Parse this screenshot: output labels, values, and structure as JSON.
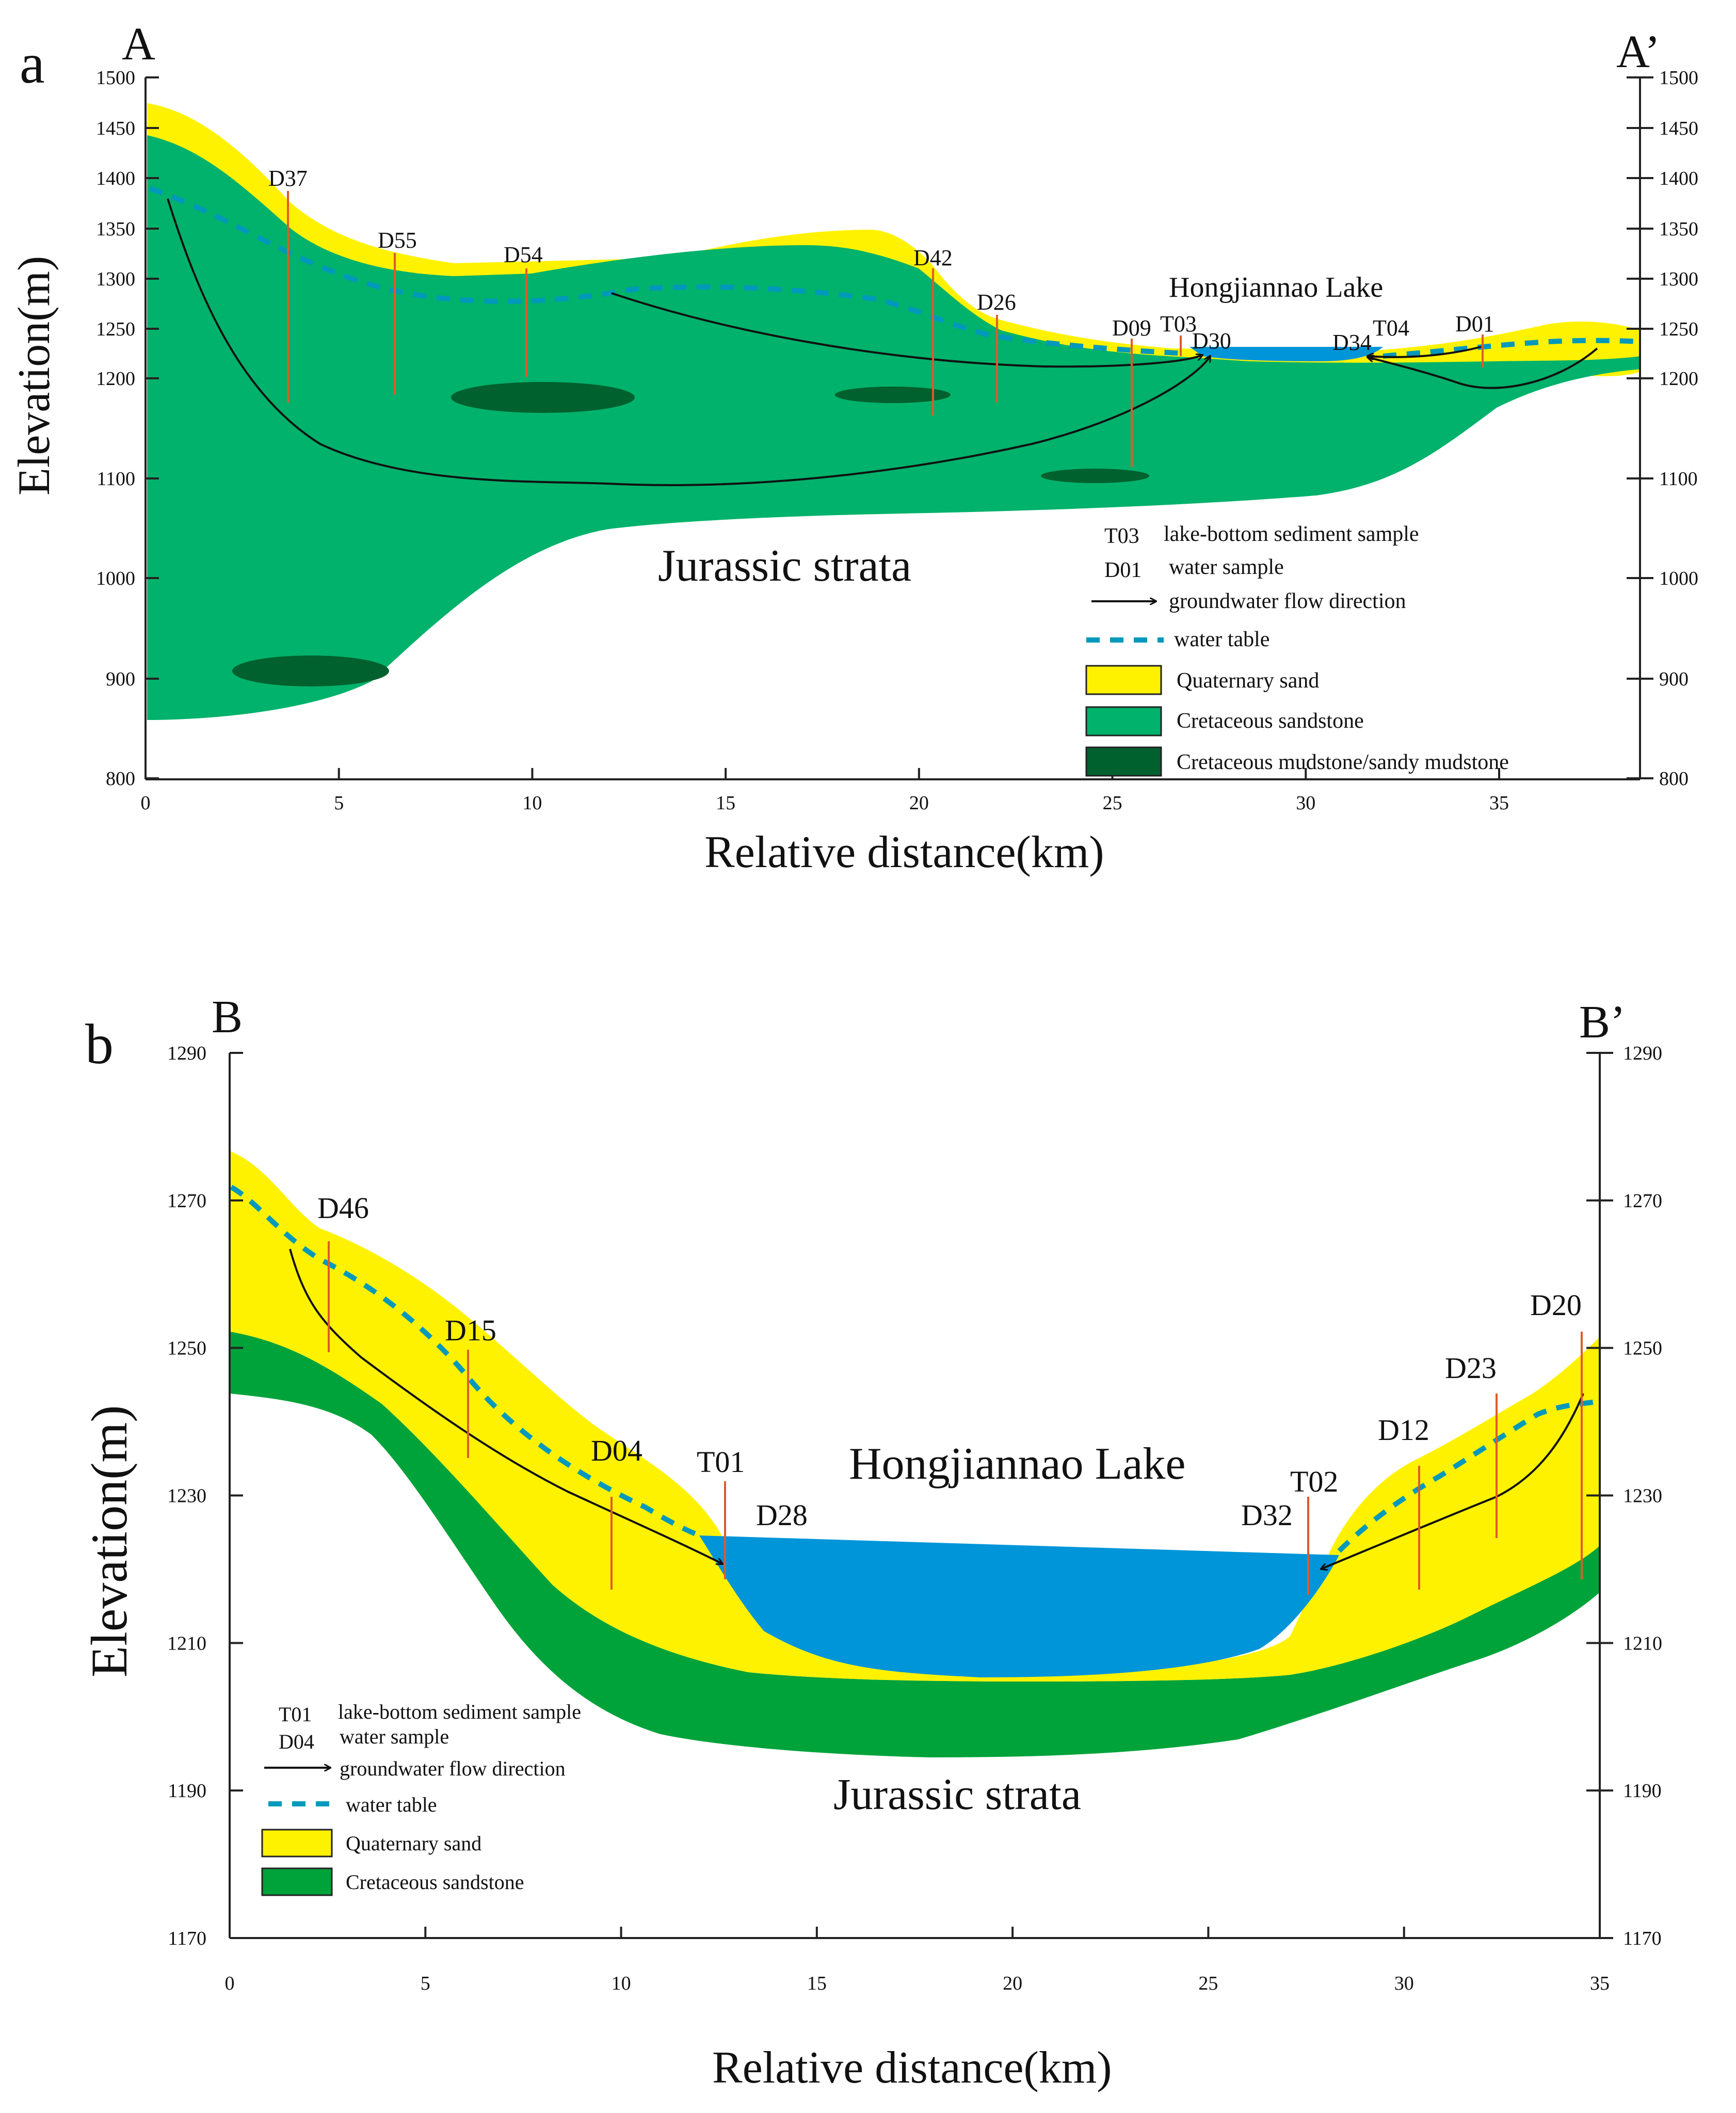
{
  "colors": {
    "quaternary_sand": "#fff200",
    "cretaceous_sandstone": "#00b26b",
    "cretaceous_sandstone_b": "#00a33a",
    "mudstone": "#00612e",
    "lake": "#0095d9",
    "water_table": "#0099bb",
    "well_line": "#e05a2a",
    "axis": "#222222"
  },
  "panel_a": {
    "letter": "a",
    "left_label": "A",
    "right_label": "A’",
    "y_axis_label": "Elevation(m)",
    "x_axis_label": "Relative distance(km)",
    "y_ticks": [
      "1500",
      "1450",
      "1400",
      "1350",
      "1300",
      "1250",
      "1200",
      "1100",
      "1000",
      "900",
      "800"
    ],
    "x_ticks": [
      "0",
      "5",
      "10",
      "15",
      "20",
      "25",
      "30",
      "35"
    ],
    "lake_label": "Hongjiannao Lake",
    "strata_label": "Jurassic strata",
    "wells": [
      "D37",
      "D55",
      "D54",
      "D42",
      "D26",
      "D09",
      "T03",
      "D30",
      "D34",
      "T04",
      "D01"
    ],
    "legend": {
      "sediment_code": "T03",
      "sediment_label": "lake-bottom sediment sample",
      "water_code": "D01",
      "water_label": "water sample",
      "flow_label": "groundwater flow direction",
      "watertable_label": "water table",
      "sand_label": "Quaternary sand",
      "sandstone_label": "Cretaceous sandstone",
      "mudstone_label": "Cretaceous mudstone/sandy mudstone"
    }
  },
  "panel_b": {
    "letter": "b",
    "left_label": "B",
    "right_label": "B’",
    "y_axis_label": "Elevation(m)",
    "x_axis_label": "Relative distance(km)",
    "y_ticks": [
      "1290",
      "1270",
      "1250",
      "1230",
      "1210",
      "1190",
      "1170"
    ],
    "x_ticks": [
      "0",
      "5",
      "10",
      "15",
      "20",
      "25",
      "30",
      "35"
    ],
    "lake_label": "Hongjiannao Lake",
    "strata_label": "Jurassic strata",
    "wells": [
      "D46",
      "D15",
      "D04",
      "T01",
      "D28",
      "T02",
      "D32",
      "D12",
      "D23",
      "D20"
    ],
    "legend": {
      "sediment_code": "T01",
      "sediment_label": "lake-bottom sediment sample",
      "water_code": "D04",
      "water_label": "water sample",
      "flow_label": "groundwater flow direction",
      "watertable_label": "water table",
      "sand_label": "Quaternary sand",
      "sandstone_label": "Cretaceous sandstone"
    }
  }
}
